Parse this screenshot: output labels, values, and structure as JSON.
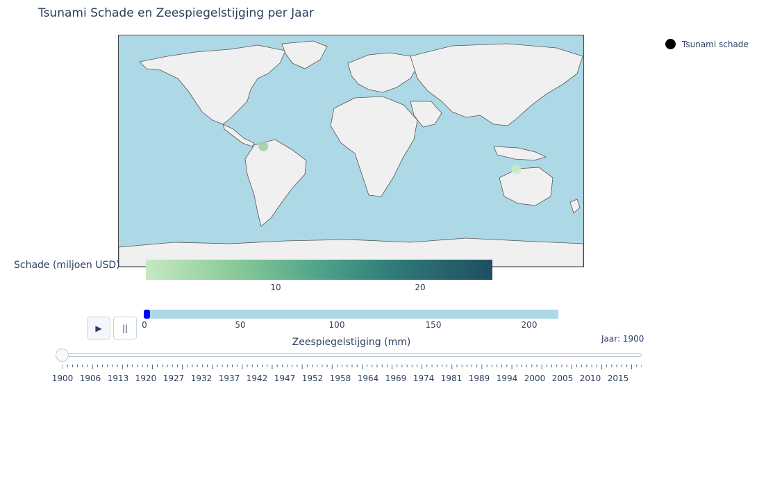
{
  "title": "Tsunami Schade en Zeespiegelstijging per Jaar",
  "legend": {
    "label": "Tsunami schade",
    "color": "#000000"
  },
  "map": {
    "ocean_color": "#add8e6",
    "land_color": "#f0f0f0",
    "markers": [
      {
        "location": "Caribbean / Venezuela coast",
        "lon": -68,
        "lat": 11,
        "color": "#9fd3a6"
      },
      {
        "location": "Eastern Indonesia",
        "lon": 128,
        "lat": -4,
        "color": "#c9ebc4"
      }
    ]
  },
  "colorbar": {
    "title": "Schade (miljoen USD)",
    "ticks": [
      "10",
      "20"
    ],
    "colors": [
      "#c5e8c4",
      "#8ccb98",
      "#4ea48a",
      "#2f7a78",
      "#1f4e60"
    ]
  },
  "sea_level_bar": {
    "title": "Zeespiegelstijging (mm)",
    "ticks": [
      "0",
      "50",
      "100",
      "150",
      "200"
    ],
    "range": [
      0,
      215
    ],
    "current_value": 0
  },
  "buttons": {
    "play": "▶",
    "pause": "||"
  },
  "slider": {
    "current_value_label": "Jaar: 1900",
    "labels": [
      "1900",
      "1906",
      "1913",
      "1920",
      "1927",
      "1932",
      "1937",
      "1942",
      "1947",
      "1952",
      "1958",
      "1964",
      "1969",
      "1974",
      "1981",
      "1989",
      "1994",
      "2000",
      "2005",
      "2010",
      "2015"
    ]
  }
}
